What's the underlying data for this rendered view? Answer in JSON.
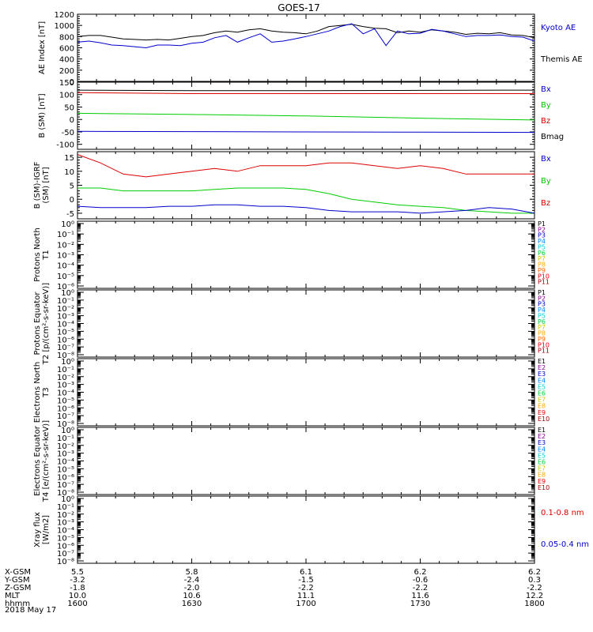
{
  "title": "GOES-17",
  "date_label": "2018 May 17",
  "x_axis": {
    "row_labels": [
      "X-GSM",
      "Y-GSM",
      "Z-GSM",
      "MLT",
      "hhmm"
    ],
    "columns": [
      {
        "values": [
          "5.5",
          "-3.2",
          "-1.8",
          "10.0",
          "1600"
        ]
      },
      {
        "values": [
          "5.8",
          "-2.4",
          "-2.0",
          "10.6",
          "1630"
        ]
      },
      {
        "values": [
          "6.1",
          "-1.5",
          "-2.2",
          "11.1",
          "1700"
        ]
      },
      {
        "values": [
          "6.2",
          "-0.6",
          "-2.2",
          "11.6",
          "1730"
        ]
      },
      {
        "values": [
          "6.2",
          "0.3",
          "-2.2",
          "12.2",
          "1800"
        ]
      }
    ]
  },
  "colors": {
    "black": "#000000",
    "blue": "#0000cc",
    "green": "#00cc00",
    "red": "#dd0000"
  },
  "chart_data": [
    {
      "type": "line",
      "ylabel": "AE Index [nT]",
      "ylim": [
        0,
        1200
      ],
      "yticks": [
        "0",
        "200",
        "400",
        "600",
        "800",
        "1000",
        "1200"
      ],
      "xlim": [
        1600,
        1800
      ],
      "legend": [
        {
          "label": "Kyoto AE",
          "color": "#0000cc"
        },
        {
          "label": "Themis AE",
          "color": "#000000"
        }
      ],
      "series": [
        {
          "name": "Themis AE",
          "color": "#000000",
          "x": [
            1600,
            1605,
            1610,
            1615,
            1620,
            1625,
            1630,
            1635,
            1640,
            1645,
            1650,
            1655,
            1660,
            1665,
            1670,
            1675,
            1680,
            1685,
            1690,
            1695,
            1700,
            1705,
            1710,
            1715,
            1720,
            1725,
            1730,
            1735,
            1740,
            1745,
            1750,
            1755,
            1760,
            1765,
            1770,
            1775,
            1780,
            1785,
            1790,
            1795,
            1800
          ],
          "values": [
            800,
            820,
            820,
            790,
            760,
            750,
            740,
            750,
            740,
            770,
            800,
            820,
            870,
            900,
            880,
            920,
            940,
            900,
            880,
            870,
            850,
            900,
            980,
            1000,
            1020,
            980,
            950,
            940,
            870,
            900,
            880,
            920,
            900,
            880,
            840,
            860,
            850,
            870,
            830,
            820,
            780
          ]
        },
        {
          "name": "Kyoto AE",
          "color": "#0000cc",
          "x": [
            1600,
            1605,
            1610,
            1615,
            1620,
            1625,
            1630,
            1635,
            1640,
            1645,
            1650,
            1655,
            1660,
            1665,
            1670,
            1675,
            1680,
            1685,
            1690,
            1695,
            1700,
            1705,
            1710,
            1715,
            1720,
            1725,
            1730,
            1735,
            1740,
            1745,
            1750,
            1755,
            1760,
            1765,
            1770,
            1775,
            1780,
            1785,
            1790,
            1795,
            1800
          ],
          "values": [
            700,
            720,
            690,
            650,
            640,
            620,
            600,
            650,
            650,
            640,
            680,
            700,
            780,
            820,
            700,
            780,
            850,
            700,
            720,
            760,
            800,
            850,
            900,
            980,
            1030,
            850,
            940,
            640,
            900,
            850,
            860,
            930,
            900,
            850,
            800,
            820,
            820,
            830,
            800,
            790,
            720
          ]
        }
      ]
    },
    {
      "type": "line",
      "ylabel": "B (SM) [nT]",
      "ylim": [
        -120,
        150
      ],
      "yticks": [
        "-100",
        "-50",
        "0",
        "50",
        "100",
        "150"
      ],
      "xlim": [
        1600,
        1800
      ],
      "legend": [
        {
          "label": "Bx",
          "color": "#0000cc"
        },
        {
          "label": "By",
          "color": "#00cc00"
        },
        {
          "label": "Bz",
          "color": "#dd0000"
        },
        {
          "label": "Bmag",
          "color": "#000000"
        }
      ],
      "series": [
        {
          "name": "Bmag",
          "color": "#000000",
          "x": [
            1600,
            1650,
            1700,
            1750,
            1800
          ],
          "values": [
            118,
            116,
            116,
            117,
            118
          ]
        },
        {
          "name": "Bz",
          "color": "#dd0000",
          "x": [
            1600,
            1650,
            1700,
            1750,
            1800
          ],
          "values": [
            108,
            104,
            104,
            104,
            104
          ]
        },
        {
          "name": "By",
          "color": "#00cc00",
          "x": [
            1600,
            1650,
            1700,
            1750,
            1800
          ],
          "values": [
            25,
            20,
            14,
            5,
            -2
          ]
        },
        {
          "name": "Bx",
          "color": "#0000cc",
          "x": [
            1600,
            1650,
            1700,
            1750,
            1800
          ],
          "values": [
            -48,
            -49,
            -50,
            -51,
            -52
          ]
        }
      ]
    },
    {
      "type": "line",
      "ylabel": "B (SM)-IGRF (SM) [nT]",
      "ylim": [
        -7,
        17
      ],
      "yticks": [
        "-5",
        "0",
        "5",
        "10",
        "15"
      ],
      "xlim": [
        1600,
        1800
      ],
      "legend": [
        {
          "label": "Bx",
          "color": "#0000cc"
        },
        {
          "label": "By",
          "color": "#00cc00"
        },
        {
          "label": "Bz",
          "color": "#dd0000"
        }
      ],
      "series": [
        {
          "name": "Bz",
          "color": "#dd0000",
          "x": [
            1600,
            1610,
            1620,
            1630,
            1640,
            1650,
            1660,
            1670,
            1680,
            1690,
            1700,
            1710,
            1720,
            1730,
            1740,
            1750,
            1760,
            1770,
            1780,
            1790,
            1800
          ],
          "values": [
            16,
            13,
            9,
            8,
            9,
            10,
            11,
            10,
            12,
            12,
            12,
            13,
            13,
            12,
            11,
            12,
            11,
            9,
            9,
            9,
            9
          ]
        },
        {
          "name": "By",
          "color": "#00cc00",
          "x": [
            1600,
            1610,
            1620,
            1630,
            1640,
            1650,
            1660,
            1670,
            1680,
            1690,
            1700,
            1710,
            1720,
            1730,
            1740,
            1750,
            1760,
            1770,
            1780,
            1790,
            1800
          ],
          "values": [
            4,
            4,
            3,
            3,
            3,
            3,
            3.5,
            4,
            4,
            4,
            3.5,
            2,
            0,
            -1,
            -2,
            -2.5,
            -3,
            -4,
            -4.5,
            -5,
            -5
          ]
        },
        {
          "name": "Bx",
          "color": "#0000cc",
          "x": [
            1600,
            1610,
            1620,
            1630,
            1640,
            1650,
            1660,
            1670,
            1680,
            1690,
            1700,
            1710,
            1720,
            1730,
            1740,
            1750,
            1760,
            1770,
            1780,
            1790,
            1800
          ],
          "values": [
            -2.5,
            -3,
            -3,
            -3,
            -2.5,
            -2.5,
            -2,
            -2,
            -2.5,
            -2.5,
            -3,
            -4,
            -4.5,
            -4.5,
            -4.5,
            -5,
            -4.5,
            -4,
            -3,
            -3.5,
            -5
          ]
        }
      ]
    },
    {
      "type": "line",
      "ylabel": "Protons North T1",
      "yscale": "log",
      "yticks": [
        "10⁻⁶",
        "10⁻⁵",
        "10⁻⁴",
        "10⁻³",
        "10⁻²",
        "10⁻¹",
        "10⁰"
      ],
      "legend": [
        {
          "label": "P1",
          "color": "#000000"
        },
        {
          "label": "P2",
          "color": "#880088"
        },
        {
          "label": "P3",
          "color": "#0000cc"
        },
        {
          "label": "P4",
          "color": "#0088ff"
        },
        {
          "label": "P5",
          "color": "#00cccc"
        },
        {
          "label": "P6",
          "color": "#00cc44"
        },
        {
          "label": "P7",
          "color": "#cccc00"
        },
        {
          "label": "P8",
          "color": "#ffaa00"
        },
        {
          "label": "P9",
          "color": "#ff6600"
        },
        {
          "label": "P10",
          "color": "#ee0000"
        },
        {
          "label": "P11",
          "color": "#aa0000"
        }
      ],
      "series": []
    },
    {
      "type": "line",
      "ylabel": "Protons Equator T2 [p/(cm²-s-sr-keV)]",
      "yscale": "log",
      "yticks": [
        "10⁻⁸",
        "10⁻⁷",
        "10⁻⁶",
        "10⁻⁵",
        "10⁻⁴",
        "10⁻³",
        "10⁻²",
        "10⁻¹",
        "10⁰"
      ],
      "legend": [
        {
          "label": "P1",
          "color": "#000000"
        },
        {
          "label": "P2",
          "color": "#880088"
        },
        {
          "label": "P3",
          "color": "#0000cc"
        },
        {
          "label": "P4",
          "color": "#0088ff"
        },
        {
          "label": "P5",
          "color": "#00cccc"
        },
        {
          "label": "P6",
          "color": "#00cc44"
        },
        {
          "label": "P7",
          "color": "#cccc00"
        },
        {
          "label": "P8",
          "color": "#ffaa00"
        },
        {
          "label": "P9",
          "color": "#ff6600"
        },
        {
          "label": "P10",
          "color": "#ee0000"
        },
        {
          "label": "P11",
          "color": "#aa0000"
        }
      ],
      "series": []
    },
    {
      "type": "line",
      "ylabel": "Electrons North T3",
      "yscale": "log",
      "yticks": [
        "10⁻⁸",
        "10⁻⁷",
        "10⁻⁶",
        "10⁻⁵",
        "10⁻⁴",
        "10⁻³",
        "10⁻²",
        "10⁻¹",
        "10⁰"
      ],
      "legend": [
        {
          "label": "E1",
          "color": "#000000"
        },
        {
          "label": "E2",
          "color": "#880088"
        },
        {
          "label": "E3",
          "color": "#0000cc"
        },
        {
          "label": "E4",
          "color": "#0088ff"
        },
        {
          "label": "E5",
          "color": "#00cccc"
        },
        {
          "label": "E6",
          "color": "#00cc44"
        },
        {
          "label": "E7",
          "color": "#cccc00"
        },
        {
          "label": "E8",
          "color": "#ffaa00"
        },
        {
          "label": "E9",
          "color": "#ee0000"
        },
        {
          "label": "E10",
          "color": "#aa0000"
        }
      ],
      "series": []
    },
    {
      "type": "line",
      "ylabel": "Electrons Equator T4 [e/(cm²-s-sr-keV)]",
      "yscale": "log",
      "yticks": [
        "10⁻⁸",
        "10⁻⁷",
        "10⁻⁶",
        "10⁻⁵",
        "10⁻⁴",
        "10⁻³",
        "10⁻²",
        "10⁻¹",
        "10⁰"
      ],
      "legend": [
        {
          "label": "E1",
          "color": "#000000"
        },
        {
          "label": "E2",
          "color": "#880088"
        },
        {
          "label": "E3",
          "color": "#0000cc"
        },
        {
          "label": "E4",
          "color": "#0088ff"
        },
        {
          "label": "E5",
          "color": "#00cccc"
        },
        {
          "label": "E6",
          "color": "#00cc44"
        },
        {
          "label": "E7",
          "color": "#cccc00"
        },
        {
          "label": "E8",
          "color": "#ffaa00"
        },
        {
          "label": "E9",
          "color": "#ee0000"
        },
        {
          "label": "E10",
          "color": "#aa0000"
        }
      ],
      "series": []
    },
    {
      "type": "line",
      "ylabel": "Xray flux [W/m2]",
      "yscale": "log",
      "yticks": [
        "10⁻⁸",
        "10⁻⁷",
        "10⁻⁶",
        "10⁻⁵",
        "10⁻⁴",
        "10⁻³",
        "10⁻²",
        "10⁻¹",
        "10⁰"
      ],
      "legend": [
        {
          "label": "0.1-0.8 nm",
          "color": "#dd0000"
        },
        {
          "label": "0.05-0.4 nm",
          "color": "#0000cc"
        }
      ],
      "series": []
    }
  ]
}
